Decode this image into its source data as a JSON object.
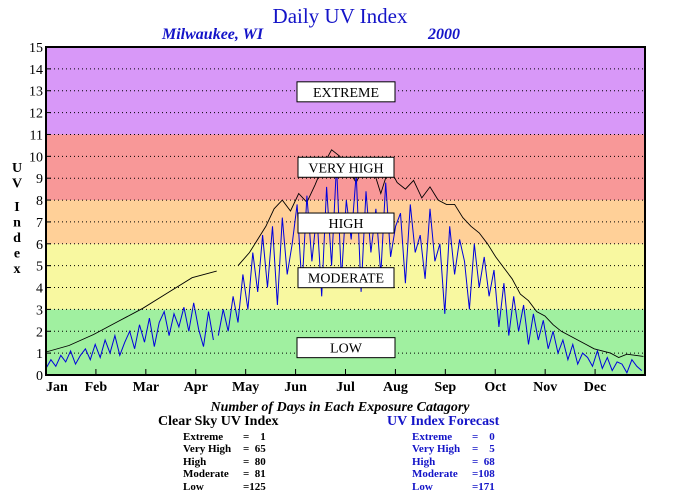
{
  "chart_data": {
    "type": "line",
    "title": "Daily UV Index",
    "location": "Milwaukee, WI",
    "year": "2000",
    "ylabel": "UV Index",
    "ylim": [
      0,
      15
    ],
    "yticks": [
      0,
      1,
      2,
      3,
      4,
      5,
      6,
      7,
      8,
      9,
      10,
      11,
      12,
      13,
      14,
      15
    ],
    "xlabels": [
      "Jan",
      "Feb",
      "Mar",
      "Apr",
      "May",
      "Jun",
      "Jul",
      "Aug",
      "Sep",
      "Oct",
      "Nov",
      "Dec"
    ],
    "bands": [
      {
        "label": "LOW",
        "from": 0,
        "to": 3,
        "color": "#a0f0a0",
        "label_y": 1.25
      },
      {
        "label": "MODERATE",
        "from": 3,
        "to": 6,
        "color": "#f8f8a0",
        "label_y": 4.45
      },
      {
        "label": "HIGH",
        "from": 6,
        "to": 8,
        "color": "#ffd098",
        "label_y": 6.95
      },
      {
        "label": "VERY HIGH",
        "from": 8,
        "to": 11,
        "color": "#f89898",
        "label_y": 9.5
      },
      {
        "label": "EXTREME",
        "from": 11,
        "to": 15,
        "color": "#d898f8",
        "label_y": 12.95
      }
    ],
    "series": [
      {
        "name": "Clear Sky UV Index",
        "color": "#000000",
        "segments": [
          {
            "x": [
              1,
              15,
              30,
              45,
              60,
              75,
              90,
              105
            ],
            "y": [
              1.05,
              1.35,
              1.85,
              2.45,
              3.05,
              3.75,
              4.45,
              4.75
            ]
          },
          {
            "x": [
              118,
              125,
              130,
              135,
              140,
              145,
              150,
              155,
              160,
              165,
              170,
              175,
              180,
              185,
              190,
              195,
              200,
              205,
              210,
              215,
              220,
              225,
              230,
              235,
              240,
              245,
              250,
              255,
              260,
              265,
              270,
              275,
              280,
              285,
              290,
              295,
              300,
              305,
              310,
              315,
              320,
              325,
              330,
              335,
              340,
              345,
              350,
              355,
              360,
              365
            ],
            "y": [
              5.0,
              5.6,
              6.2,
              6.8,
              7.6,
              8.0,
              7.5,
              8.3,
              7.9,
              8.7,
              9.6,
              10.3,
              10.0,
              9.4,
              8.8,
              9.6,
              9.5,
              8.3,
              9.5,
              8.8,
              8.5,
              8.9,
              8.1,
              8.6,
              8.0,
              7.8,
              7.8,
              7.2,
              6.8,
              6.5,
              6.0,
              5.4,
              4.9,
              4.4,
              3.7,
              3.4,
              2.9,
              2.7,
              2.3,
              2.0,
              1.8,
              1.6,
              1.4,
              1.2,
              1.1,
              1.0,
              0.8,
              0.95,
              0.9,
              0.85
            ]
          }
        ]
      },
      {
        "name": "UV Index Forecast",
        "color": "#0000dd",
        "segments": [
          {
            "x": [
              1,
              4,
              7,
              10,
              13,
              16,
              19,
              22,
              25,
              28,
              31,
              34,
              37,
              40,
              43,
              46,
              49,
              52,
              55,
              58,
              61,
              64,
              67,
              70,
              73,
              76,
              79,
              82,
              85,
              88,
              91,
              94,
              97,
              100,
              103
            ],
            "y": [
              0.3,
              0.7,
              0.4,
              0.9,
              0.6,
              1.1,
              0.5,
              0.9,
              1.2,
              0.7,
              1.4,
              0.8,
              1.6,
              1.0,
              1.8,
              0.9,
              1.5,
              2.0,
              1.2,
              2.3,
              1.5,
              2.6,
              1.3,
              2.4,
              2.9,
              1.8,
              2.8,
              2.2,
              3.1,
              2.0,
              3.3,
              2.1,
              1.3,
              2.9,
              1.6
            ]
          },
          {
            "x": [
              106,
              109,
              112,
              115,
              118,
              121,
              124,
              127,
              130,
              133,
              136,
              139,
              142,
              145,
              148,
              151,
              154,
              157,
              160,
              163,
              166,
              169,
              172,
              175,
              178,
              181,
              184,
              187,
              190,
              193,
              196,
              199,
              202,
              205,
              208,
              211,
              214,
              217,
              220,
              223,
              226,
              229,
              232,
              235,
              238,
              241,
              244,
              247,
              250,
              253,
              256,
              259,
              262,
              265,
              268,
              271,
              274,
              277,
              280,
              283,
              286,
              289,
              292,
              295,
              298,
              301,
              304,
              307,
              310,
              313,
              316,
              319,
              322,
              325,
              328,
              331,
              334,
              337,
              340,
              343,
              346,
              349,
              352,
              355,
              358,
              361,
              364
            ],
            "y": [
              1.8,
              3.0,
              2.0,
              3.6,
              2.4,
              4.6,
              3.0,
              5.6,
              3.8,
              6.4,
              4.0,
              6.8,
              3.2,
              7.2,
              4.6,
              6.0,
              7.8,
              4.0,
              8.2,
              5.2,
              7.4,
              3.6,
              8.6,
              5.0,
              9.6,
              4.4,
              8.0,
              6.2,
              9.2,
              3.8,
              8.4,
              5.6,
              7.6,
              4.6,
              8.8,
              5.4,
              6.8,
              7.4,
              4.2,
              7.8,
              5.6,
              6.4,
              4.4,
              7.6,
              5.2,
              6.0,
              2.8,
              6.8,
              4.6,
              6.2,
              5.2,
              3.0,
              6.0,
              4.0,
              5.4,
              3.6,
              4.8,
              2.2,
              4.2,
              1.8,
              3.6,
              2.0,
              3.2,
              1.4,
              2.8,
              1.6,
              2.5,
              1.2,
              2.0,
              1.0,
              1.6,
              0.7,
              1.4,
              0.5,
              1.0,
              0.8,
              0.4,
              1.1,
              0.3,
              0.8,
              0.2,
              0.6,
              0.5,
              0.1,
              0.7,
              0.4,
              0.2
            ]
          }
        ]
      }
    ],
    "summary": {
      "caption": "Number of Days in Each Exposure Catagory",
      "clear_sky": {
        "title": "Clear Sky UV Index",
        "color": "#000000",
        "rows": [
          {
            "label": "Extreme",
            "value": "=    1"
          },
          {
            "label": "Very High",
            "value": "=  65"
          },
          {
            "label": "High",
            "value": "=  80"
          },
          {
            "label": "Moderate",
            "value": "=  81"
          },
          {
            "label": "Low",
            "value": "=125"
          }
        ]
      },
      "forecast": {
        "title": "UV Index Forecast",
        "color": "#1414c8",
        "rows": [
          {
            "label": "Extreme",
            "value": "=    0"
          },
          {
            "label": "Very High",
            "value": "=    5"
          },
          {
            "label": "High",
            "value": "=  68"
          },
          {
            "label": "Moderate",
            "value": "=108"
          },
          {
            "label": "Low",
            "value": "=171"
          }
        ]
      }
    }
  }
}
